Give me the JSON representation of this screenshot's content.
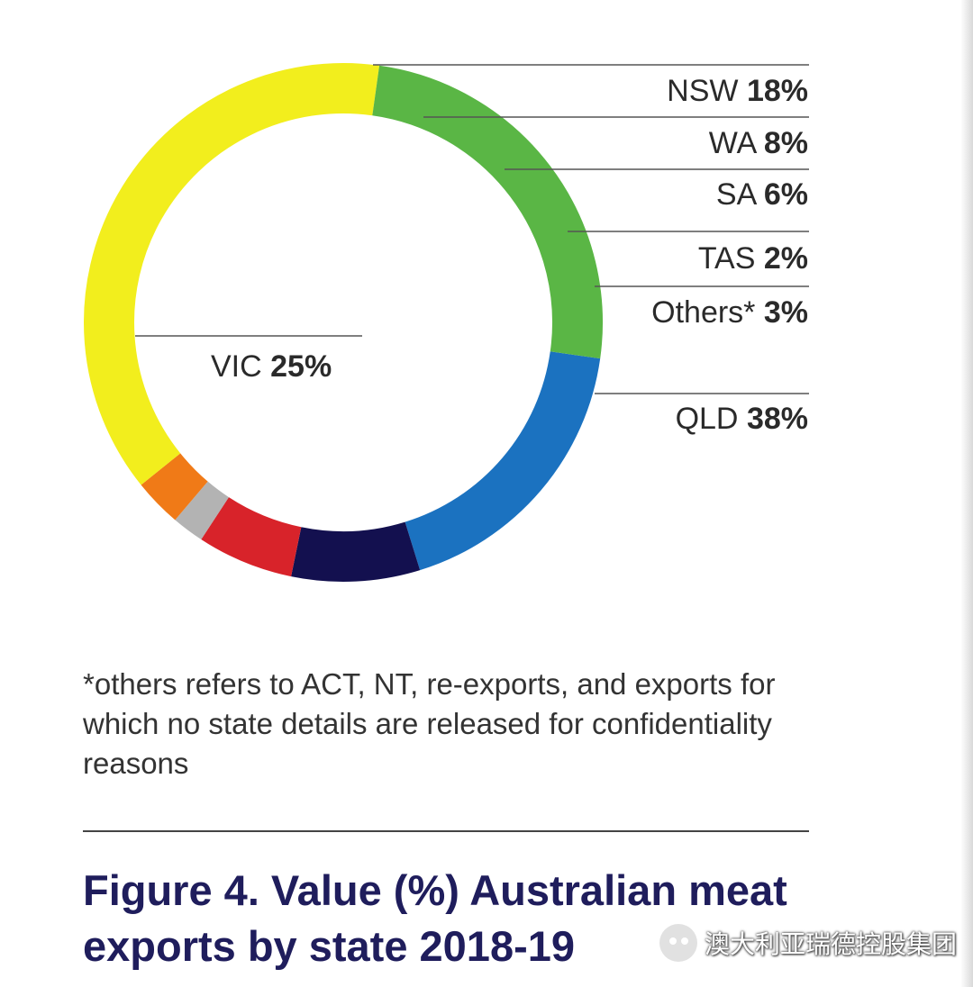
{
  "chart_data": {
    "type": "pie",
    "style": "donut",
    "title": "Figure 4. Value (%) Australian meat exports by state 2018-19",
    "categories": [
      "NSW",
      "WA",
      "SA",
      "TAS",
      "Others*",
      "QLD",
      "VIC"
    ],
    "values": [
      18,
      8,
      6,
      2,
      3,
      38,
      25
    ],
    "unit": "%",
    "colors": {
      "NSW": "#1b72c0",
      "WA": "#13104f",
      "SA": "#d8232a",
      "TAS": "#b3b3b3",
      "Others*": "#f07a17",
      "QLD": "#f2ee1d",
      "VIC": "#5ab645"
    },
    "legend_placement": "right"
  },
  "labels": [
    {
      "state": "NSW",
      "pct": "18%"
    },
    {
      "state": "WA",
      "pct": "8%"
    },
    {
      "state": "SA",
      "pct": "6%"
    },
    {
      "state": "TAS",
      "pct": "2%"
    },
    {
      "state": "Others*",
      "pct": "3%"
    },
    {
      "state": "QLD",
      "pct": "38%"
    },
    {
      "state": "VIC",
      "pct": "25%"
    }
  ],
  "footnote": "*others refers to ACT, NT, re-exports, and exports for which no state details are released for confidentiality reasons",
  "figure_title": "Figure 4. Value (%) Australian meat exports by state 2018-19",
  "watermark": {
    "icon": "wechat-icon",
    "text": "澳大利亚瑞德控股集团"
  }
}
